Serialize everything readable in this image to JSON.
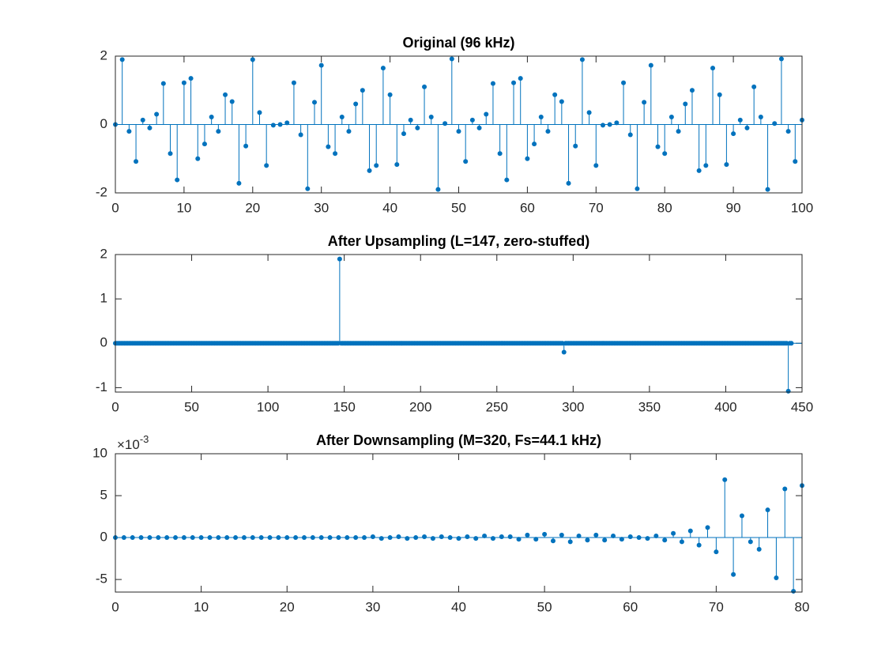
{
  "chart_data": [
    {
      "type": "stem",
      "title": "Original (96 kHz)",
      "color": "#0072bd",
      "xlim": [
        0,
        100
      ],
      "xticks": [
        0,
        10,
        20,
        30,
        40,
        50,
        60,
        70,
        80,
        90,
        100
      ],
      "ylim": [
        -2,
        2
      ],
      "yticks": [
        -2,
        0,
        2
      ],
      "values": [
        0,
        1.9,
        -0.2,
        -1.08,
        0.13,
        -0.1,
        0.3,
        1.2,
        -0.85,
        -1.62,
        1.22,
        1.35,
        -1.0,
        -0.57,
        0.22,
        -0.2,
        0.87,
        0.67,
        -1.72,
        -0.63,
        1.9,
        0.35,
        -1.2,
        -0.02,
        0,
        0.05,
        1.22,
        -0.3,
        -1.88,
        0.65,
        1.73,
        -0.65,
        -0.85,
        0.22,
        -0.2,
        0.6,
        1.0,
        -1.35,
        -1.2,
        1.65,
        0.87,
        -1.17,
        -0.27,
        0.13,
        -0.1,
        1.1,
        0.22,
        -1.9,
        0.03,
        1.92,
        -0.2,
        -1.08,
        0.13,
        -0.1,
        0.3,
        1.2,
        -0.85,
        -1.62,
        1.22,
        1.35,
        -1.0,
        -0.57,
        0.22,
        -0.2,
        0.87,
        0.67,
        -1.72,
        -0.63,
        1.9,
        0.35,
        -1.2,
        -0.02,
        0,
        0.05,
        1.22,
        -0.3,
        -1.88,
        0.65,
        1.73,
        -0.65,
        -0.85,
        0.22,
        -0.2,
        0.6,
        1.0,
        -1.35,
        -1.2,
        1.65,
        0.87,
        -1.17,
        -0.27,
        0.13,
        -0.1,
        1.1,
        0.22,
        -1.9,
        0.03,
        1.92,
        -0.2,
        -1.08,
        0.13
      ]
    },
    {
      "type": "stem",
      "title": "After Upsampling (L=147, zero-stuffed)",
      "color": "#0072bd",
      "xlim": [
        0,
        450
      ],
      "xticks": [
        0,
        50,
        100,
        150,
        200,
        250,
        300,
        350,
        400,
        450
      ],
      "ylim": [
        -1.1,
        2
      ],
      "yticks": [
        -1,
        0,
        1,
        2
      ],
      "values": [
        0,
        0,
        0,
        0,
        0,
        0,
        0,
        0,
        0,
        0,
        0,
        0,
        0,
        0,
        0,
        0,
        0,
        0,
        0,
        0,
        0,
        0,
        0,
        0,
        0,
        0,
        0,
        0,
        0,
        0,
        0,
        0,
        0,
        0,
        0,
        0,
        0,
        0,
        0,
        0,
        0,
        0,
        0,
        0,
        0,
        0,
        0,
        0,
        0,
        0,
        0,
        0,
        0,
        0,
        0,
        0,
        0,
        0,
        0,
        0,
        0,
        0,
        0,
        0,
        0,
        0,
        0,
        0,
        0,
        0,
        0,
        0,
        0,
        0,
        0,
        0,
        0,
        0,
        0,
        0,
        0,
        0,
        0,
        0,
        0,
        0,
        0,
        0,
        0,
        0,
        0,
        0,
        0,
        0,
        0,
        0,
        0,
        0,
        0,
        0,
        0,
        0,
        0,
        0,
        0,
        0,
        0,
        0,
        0,
        0,
        0,
        0,
        0,
        0,
        0,
        0,
        0,
        0,
        0,
        0,
        0,
        0,
        0,
        0,
        0,
        0,
        0,
        0,
        0,
        0,
        0,
        0,
        0,
        0,
        0,
        0,
        0,
        0,
        0,
        0,
        0,
        0,
        0,
        0,
        0,
        0,
        0,
        1.9,
        0,
        0,
        0,
        0,
        0,
        0,
        0,
        0,
        0,
        0,
        0,
        0,
        0,
        0,
        0,
        0,
        0,
        0,
        0,
        0,
        0,
        0,
        0,
        0,
        0,
        0,
        0,
        0,
        0,
        0,
        0,
        0,
        0,
        0,
        0,
        0,
        0,
        0,
        0,
        0,
        0,
        0,
        0,
        0,
        0,
        0,
        0,
        0,
        0,
        0,
        0,
        0,
        0,
        0,
        0,
        0,
        0,
        0,
        0,
        0,
        0,
        0,
        0,
        0,
        0,
        0,
        0,
        0,
        0,
        0,
        0,
        0,
        0,
        0,
        0,
        0,
        0,
        0,
        0,
        0,
        0,
        0,
        0,
        0,
        0,
        0,
        0,
        0,
        0,
        0,
        0,
        0,
        0,
        0,
        0,
        0,
        0,
        0,
        0,
        0,
        0,
        0,
        0,
        0,
        0,
        0,
        0,
        0,
        0,
        0,
        0,
        0,
        0,
        0,
        0,
        0,
        0,
        0,
        0,
        0,
        0,
        0,
        0,
        0,
        0,
        0,
        0,
        0,
        0,
        0,
        0,
        0,
        0,
        0,
        0,
        0,
        0,
        0,
        0,
        0,
        0,
        0,
        0,
        0,
        0,
        0,
        -0.2,
        0,
        0,
        0,
        0,
        0,
        0,
        0,
        0,
        0,
        0,
        0,
        0,
        0,
        0,
        0,
        0,
        0,
        0,
        0,
        0,
        0,
        0,
        0,
        0,
        0,
        0,
        0,
        0,
        0,
        0,
        0,
        0,
        0,
        0,
        0,
        0,
        0,
        0,
        0,
        0,
        0,
        0,
        0,
        0,
        0,
        0,
        0,
        0,
        0,
        0,
        0,
        0,
        0,
        0,
        0,
        0,
        0,
        0,
        0,
        0,
        0,
        0,
        0,
        0,
        0,
        0,
        0,
        0,
        0,
        0,
        0,
        0,
        0,
        0,
        0,
        0,
        0,
        0,
        0,
        0,
        0,
        0,
        0,
        0,
        0,
        0,
        0,
        0,
        0,
        0,
        0,
        0,
        0,
        0,
        0,
        0,
        0,
        0,
        0,
        0,
        0,
        0,
        0,
        0,
        0,
        0,
        0,
        0,
        0,
        0,
        0,
        0,
        0,
        0,
        0,
        0,
        0,
        0,
        0,
        0,
        0,
        0,
        0,
        0,
        0,
        0,
        0,
        0,
        0,
        0,
        0,
        0,
        0,
        0,
        0,
        0,
        0,
        0,
        0,
        0,
        0,
        0,
        0,
        0,
        0,
        0,
        -1.08,
        0,
        0
      ]
    },
    {
      "type": "stem",
      "title": "After Downsampling (M=320, Fs=44.1 kHz)",
      "color": "#0072bd",
      "xlim": [
        0,
        80
      ],
      "xticks": [
        0,
        10,
        20,
        30,
        40,
        50,
        60,
        70,
        80
      ],
      "ylim": [
        -0.0065,
        0.01
      ],
      "yticks": [
        {
          "value": -0.005,
          "label": "-5"
        },
        0,
        {
          "value": 0.005,
          "label": "5"
        },
        {
          "value": 0.01,
          "label": "10"
        }
      ],
      "y_multiplier": {
        "base": "×10",
        "exponent": "-3"
      },
      "values": [
        0,
        0,
        0,
        0,
        0,
        0,
        0,
        0,
        0,
        0,
        0,
        0,
        0,
        0,
        0,
        0,
        0,
        0,
        0,
        0,
        0,
        0,
        0,
        0,
        0,
        0,
        0,
        0,
        0,
        0,
        0.0001,
        -0.0001,
        0,
        0.0001,
        -0.0001,
        0,
        0.0001,
        -0.0001,
        0.0001,
        0,
        -0.0001,
        0.0001,
        -0.0001,
        0.0002,
        -0.0001,
        0.0001,
        0.0001,
        -0.0002,
        0.0003,
        -0.0002,
        0.0004,
        -0.0004,
        0.0003,
        -0.0005,
        0.0002,
        -0.0003,
        0.0003,
        -0.0003,
        0.0002,
        -0.0002,
        0.0001,
        0,
        -0.0001,
        0.0002,
        -0.0003,
        0.0005,
        -0.0005,
        0.0008,
        -0.0009,
        0.0012,
        -0.0017,
        0.0069,
        -0.0044,
        0.0026,
        -0.0005,
        -0.0014,
        0.0033,
        -0.0048,
        0.0058,
        -0.0064,
        0.0062
      ]
    }
  ]
}
